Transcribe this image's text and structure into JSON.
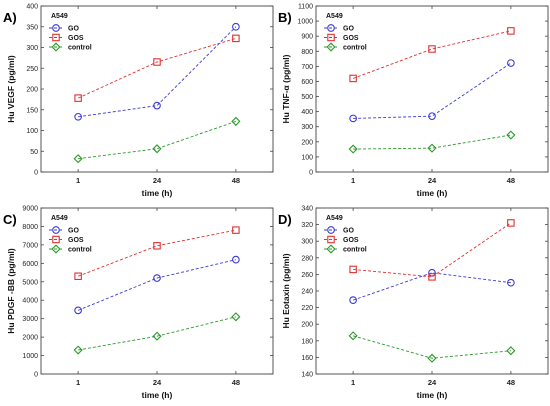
{
  "chart_data": [
    {
      "type": "line",
      "panel": "A)",
      "cell_label": "A549",
      "xlabel": "time (h)",
      "ylabel": "Hu VEGF (pg/ml)",
      "categories": [
        "1",
        "24",
        "48"
      ],
      "ylim": [
        0,
        400
      ],
      "yticks": [
        0,
        50,
        100,
        150,
        200,
        250,
        300,
        350,
        400
      ],
      "grid": false,
      "legend": "top-left",
      "series": [
        {
          "name": "GO",
          "values": [
            133,
            160,
            350
          ],
          "color": "#3a3ad8",
          "marker": "circle"
        },
        {
          "name": "GOS",
          "values": [
            178,
            265,
            322
          ],
          "color": "#e03030",
          "marker": "square"
        },
        {
          "name": "control",
          "values": [
            32,
            56,
            122
          ],
          "color": "#2a9a2a",
          "marker": "diamond"
        }
      ]
    },
    {
      "type": "line",
      "panel": "B)",
      "cell_label": "A549",
      "xlabel": "time (h)",
      "ylabel": "Hu TNF-α (pg/ml)",
      "categories": [
        "1",
        "24",
        "48"
      ],
      "ylim": [
        0,
        1100
      ],
      "yticks": [
        0,
        100,
        200,
        300,
        400,
        500,
        600,
        700,
        800,
        900,
        1000,
        1100
      ],
      "grid": false,
      "legend": "top-left",
      "series": [
        {
          "name": "GO",
          "values": [
            355,
            370,
            722
          ],
          "color": "#3a3ad8",
          "marker": "circle"
        },
        {
          "name": "GOS",
          "values": [
            620,
            815,
            935
          ],
          "color": "#e03030",
          "marker": "square"
        },
        {
          "name": "control",
          "values": [
            152,
            158,
            245
          ],
          "color": "#2a9a2a",
          "marker": "diamond"
        }
      ]
    },
    {
      "type": "line",
      "panel": "C)",
      "cell_label": "A549",
      "xlabel": "time (h)",
      "ylabel": "Hu PDGF -BB (pg/ml)",
      "categories": [
        "1",
        "24",
        "48"
      ],
      "ylim": [
        0,
        9000
      ],
      "yticks": [
        0,
        1000,
        2000,
        3000,
        4000,
        5000,
        6000,
        7000,
        8000,
        9000
      ],
      "grid": false,
      "legend": "top-left",
      "series": [
        {
          "name": "GO",
          "values": [
            3450,
            5200,
            6200
          ],
          "color": "#3a3ad8",
          "marker": "circle"
        },
        {
          "name": "GOS",
          "values": [
            5300,
            6950,
            7800
          ],
          "color": "#e03030",
          "marker": "square"
        },
        {
          "name": "control",
          "values": [
            1300,
            2050,
            3100
          ],
          "color": "#2a9a2a",
          "marker": "diamond"
        }
      ]
    },
    {
      "type": "line",
      "panel": "D)",
      "cell_label": "A549",
      "xlabel": "time (h)",
      "ylabel": "Hu Eotaxin (pg/ml)",
      "categories": [
        "1",
        "24",
        "48"
      ],
      "ylim": [
        140,
        340
      ],
      "yticks": [
        140,
        160,
        180,
        200,
        220,
        240,
        260,
        280,
        300,
        320,
        340
      ],
      "grid": false,
      "legend": "top-left",
      "series": [
        {
          "name": "GO",
          "values": [
            229,
            262,
            250
          ],
          "color": "#3a3ad8",
          "marker": "circle"
        },
        {
          "name": "GOS",
          "values": [
            266,
            257,
            322
          ],
          "color": "#e03030",
          "marker": "square"
        },
        {
          "name": "control",
          "values": [
            186,
            159,
            168
          ],
          "color": "#2a9a2a",
          "marker": "diamond"
        }
      ]
    }
  ]
}
